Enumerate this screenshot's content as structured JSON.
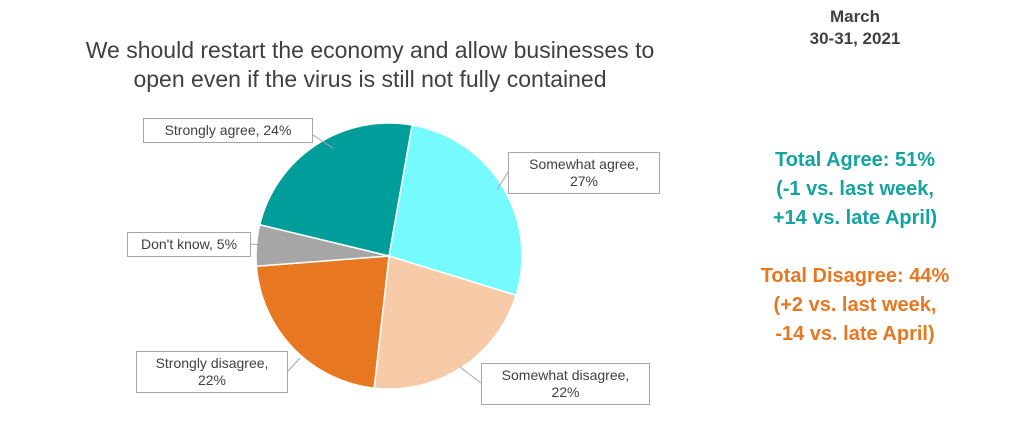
{
  "chart_data": {
    "type": "pie",
    "title": "We should restart the economy and allow businesses to\nopen even if the virus is still not fully contained",
    "date": "March\n30-31, 2021",
    "values": [
      27,
      22,
      22,
      5,
      24
    ],
    "value_labels": [
      "Somewhat agree,\n27%",
      "Somewhat disagree,\n22%",
      "Strongly disagree,\n22%",
      "Don't know, 5%",
      "Strongly agree, 24%"
    ],
    "colors": [
      "#75fbfd",
      "#f8cba8",
      "#e87722",
      "#a6a6a6",
      "#009e9a"
    ],
    "annotations": [
      {
        "text": "Total Agree: 51%\n(-1 vs. last week,\n+14 vs. late April)",
        "color": "#14a3a0"
      },
      {
        "text": "Total Disagree: 44%\n(+2 vs. last week,\n-14 vs. late April)",
        "color": "#e87722"
      }
    ]
  }
}
